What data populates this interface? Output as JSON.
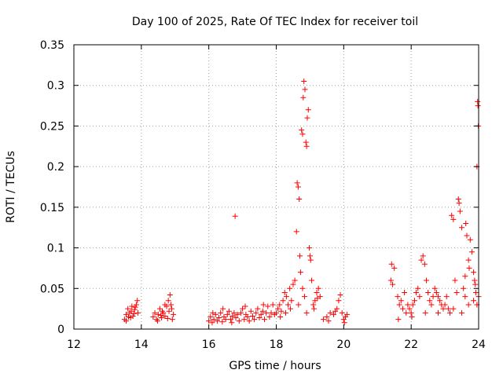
{
  "chart_data": {
    "type": "scatter",
    "title": "Day 100 of 2025, Rate Of TEC Index for receiver toil",
    "xlabel": "GPS time / hours",
    "ylabel": "ROTI / TECUs",
    "xlim": [
      12,
      24
    ],
    "ylim": [
      0,
      0.35
    ],
    "xticks": [
      12,
      14,
      16,
      18,
      20,
      22,
      24
    ],
    "xtick_labels": [
      "12",
      "14",
      "16",
      "18",
      "20",
      "22",
      "24"
    ],
    "yticks": [
      0,
      0.05,
      0.1,
      0.15,
      0.2,
      0.25,
      0.3,
      0.35
    ],
    "ytick_labels": [
      "0",
      "0.05",
      "0.1",
      "0.15",
      "0.2",
      "0.25",
      "0.3",
      "0.35"
    ],
    "grid": true,
    "marker": "+",
    "color": "#ff0000",
    "series": [
      {
        "name": "ROTI",
        "points": [
          [
            13.5,
            0.012
          ],
          [
            13.55,
            0.018
          ],
          [
            13.6,
            0.025
          ],
          [
            13.62,
            0.015
          ],
          [
            13.65,
            0.02
          ],
          [
            13.7,
            0.022
          ],
          [
            13.72,
            0.028
          ],
          [
            13.75,
            0.016
          ],
          [
            13.8,
            0.024
          ],
          [
            13.85,
            0.03
          ],
          [
            13.88,
            0.035
          ],
          [
            13.9,
            0.02
          ],
          [
            13.55,
            0.01
          ],
          [
            13.68,
            0.014
          ],
          [
            13.78,
            0.019
          ],
          [
            13.82,
            0.027
          ],
          [
            14.35,
            0.015
          ],
          [
            14.4,
            0.02
          ],
          [
            14.45,
            0.012
          ],
          [
            14.5,
            0.018
          ],
          [
            14.55,
            0.025
          ],
          [
            14.6,
            0.014
          ],
          [
            14.65,
            0.02
          ],
          [
            14.7,
            0.016
          ],
          [
            14.75,
            0.028
          ],
          [
            14.8,
            0.035
          ],
          [
            14.85,
            0.042
          ],
          [
            14.88,
            0.03
          ],
          [
            14.9,
            0.025
          ],
          [
            14.92,
            0.012
          ],
          [
            14.95,
            0.018
          ],
          [
            14.7,
            0.03
          ],
          [
            14.62,
            0.022
          ],
          [
            14.48,
            0.01
          ],
          [
            14.58,
            0.017
          ],
          [
            14.82,
            0.022
          ],
          [
            14.78,
            0.013
          ],
          [
            16.0,
            0.01
          ],
          [
            16.05,
            0.015
          ],
          [
            16.1,
            0.008
          ],
          [
            16.15,
            0.012
          ],
          [
            16.2,
            0.018
          ],
          [
            16.25,
            0.01
          ],
          [
            16.3,
            0.014
          ],
          [
            16.35,
            0.02
          ],
          [
            16.4,
            0.009
          ],
          [
            16.45,
            0.015
          ],
          [
            16.5,
            0.012
          ],
          [
            16.55,
            0.018
          ],
          [
            16.6,
            0.022
          ],
          [
            16.65,
            0.012
          ],
          [
            16.7,
            0.016
          ],
          [
            16.75,
            0.02
          ],
          [
            16.78,
            0.139
          ],
          [
            16.8,
            0.014
          ],
          [
            16.85,
            0.018
          ],
          [
            16.9,
            0.01
          ],
          [
            16.95,
            0.02
          ],
          [
            17.0,
            0.025
          ],
          [
            17.05,
            0.012
          ],
          [
            17.1,
            0.018
          ],
          [
            17.15,
            0.015
          ],
          [
            17.2,
            0.01
          ],
          [
            17.25,
            0.022
          ],
          [
            17.3,
            0.016
          ],
          [
            17.35,
            0.012
          ],
          [
            17.4,
            0.02
          ],
          [
            17.45,
            0.025
          ],
          [
            17.5,
            0.014
          ],
          [
            17.55,
            0.018
          ],
          [
            17.6,
            0.022
          ],
          [
            17.65,
            0.012
          ],
          [
            17.7,
            0.02
          ],
          [
            17.75,
            0.028
          ],
          [
            17.8,
            0.015
          ],
          [
            17.85,
            0.02
          ],
          [
            17.9,
            0.03
          ],
          [
            17.95,
            0.018
          ],
          [
            16.12,
            0.02
          ],
          [
            16.42,
            0.025
          ],
          [
            16.68,
            0.008
          ],
          [
            17.08,
            0.028
          ],
          [
            17.62,
            0.03
          ],
          [
            18.0,
            0.02
          ],
          [
            18.05,
            0.025
          ],
          [
            18.1,
            0.03
          ],
          [
            18.15,
            0.022
          ],
          [
            18.2,
            0.035
          ],
          [
            18.25,
            0.045
          ],
          [
            18.3,
            0.04
          ],
          [
            18.35,
            0.03
          ],
          [
            18.4,
            0.05
          ],
          [
            18.45,
            0.035
          ],
          [
            18.5,
            0.055
          ],
          [
            18.55,
            0.06
          ],
          [
            18.12,
            0.015
          ],
          [
            18.28,
            0.02
          ],
          [
            18.42,
            0.025
          ],
          [
            18.6,
            0.12
          ],
          [
            18.62,
            0.18
          ],
          [
            18.65,
            0.175
          ],
          [
            18.68,
            0.16
          ],
          [
            18.7,
            0.09
          ],
          [
            18.72,
            0.07
          ],
          [
            18.75,
            0.245
          ],
          [
            18.78,
            0.24
          ],
          [
            18.8,
            0.285
          ],
          [
            18.82,
            0.305
          ],
          [
            18.85,
            0.295
          ],
          [
            18.88,
            0.23
          ],
          [
            18.9,
            0.225
          ],
          [
            18.92,
            0.26
          ],
          [
            18.95,
            0.27
          ],
          [
            18.98,
            0.1
          ],
          [
            19.0,
            0.09
          ],
          [
            19.02,
            0.085
          ],
          [
            19.05,
            0.06
          ],
          [
            18.78,
            0.05
          ],
          [
            18.66,
            0.03
          ],
          [
            18.84,
            0.04
          ],
          [
            18.9,
            0.02
          ],
          [
            19.1,
            0.03
          ],
          [
            19.15,
            0.035
          ],
          [
            19.2,
            0.045
          ],
          [
            19.25,
            0.05
          ],
          [
            19.3,
            0.04
          ],
          [
            19.12,
            0.025
          ],
          [
            19.22,
            0.038
          ],
          [
            19.4,
            0.012
          ],
          [
            19.5,
            0.015
          ],
          [
            19.6,
            0.02
          ],
          [
            19.7,
            0.018
          ],
          [
            19.8,
            0.025
          ],
          [
            19.85,
            0.035
          ],
          [
            19.9,
            0.042
          ],
          [
            19.95,
            0.02
          ],
          [
            20.0,
            0.012
          ],
          [
            20.05,
            0.015
          ],
          [
            20.1,
            0.018
          ],
          [
            19.55,
            0.01
          ],
          [
            19.75,
            0.022
          ],
          [
            20.02,
            0.008
          ],
          [
            21.4,
            0.06
          ],
          [
            21.42,
            0.08
          ],
          [
            21.45,
            0.055
          ],
          [
            21.5,
            0.075
          ],
          [
            21.6,
            0.04
          ],
          [
            21.65,
            0.03
          ],
          [
            21.7,
            0.035
          ],
          [
            21.75,
            0.025
          ],
          [
            21.8,
            0.045
          ],
          [
            21.85,
            0.02
          ],
          [
            21.9,
            0.03
          ],
          [
            21.95,
            0.025
          ],
          [
            22.0,
            0.02
          ],
          [
            22.05,
            0.03
          ],
          [
            22.1,
            0.035
          ],
          [
            22.15,
            0.045
          ],
          [
            22.2,
            0.05
          ],
          [
            22.25,
            0.04
          ],
          [
            22.3,
            0.085
          ],
          [
            22.35,
            0.09
          ],
          [
            22.4,
            0.08
          ],
          [
            22.45,
            0.06
          ],
          [
            22.5,
            0.045
          ],
          [
            22.55,
            0.035
          ],
          [
            22.6,
            0.03
          ],
          [
            22.65,
            0.04
          ],
          [
            22.7,
            0.05
          ],
          [
            22.75,
            0.045
          ],
          [
            22.8,
            0.04
          ],
          [
            22.85,
            0.035
          ],
          [
            22.9,
            0.03
          ],
          [
            22.95,
            0.025
          ],
          [
            21.62,
            0.012
          ],
          [
            22.02,
            0.015
          ],
          [
            22.42,
            0.02
          ],
          [
            22.8,
            0.02
          ],
          [
            23.0,
            0.03
          ],
          [
            23.05,
            0.04
          ],
          [
            23.1,
            0.025
          ],
          [
            23.15,
            0.02
          ],
          [
            23.2,
            0.14
          ],
          [
            23.25,
            0.135
          ],
          [
            23.3,
            0.06
          ],
          [
            23.35,
            0.045
          ],
          [
            23.4,
            0.16
          ],
          [
            23.42,
            0.155
          ],
          [
            23.45,
            0.145
          ],
          [
            23.5,
            0.125
          ],
          [
            23.55,
            0.05
          ],
          [
            23.6,
            0.04
          ],
          [
            23.62,
            0.13
          ],
          [
            23.65,
            0.115
          ],
          [
            23.7,
            0.085
          ],
          [
            23.72,
            0.075
          ],
          [
            23.75,
            0.11
          ],
          [
            23.8,
            0.095
          ],
          [
            23.85,
            0.07
          ],
          [
            23.88,
            0.06
          ],
          [
            23.9,
            0.055
          ],
          [
            23.92,
            0.045
          ],
          [
            23.95,
            0.2
          ],
          [
            23.97,
            0.28
          ],
          [
            23.98,
            0.275
          ],
          [
            23.99,
            0.25
          ],
          [
            24.0,
            0.04
          ],
          [
            23.5,
            0.02
          ],
          [
            23.7,
            0.03
          ],
          [
            23.85,
            0.035
          ],
          [
            23.25,
            0.025
          ],
          [
            23.95,
            0.03
          ],
          [
            23.6,
            0.065
          ]
        ]
      }
    ]
  }
}
